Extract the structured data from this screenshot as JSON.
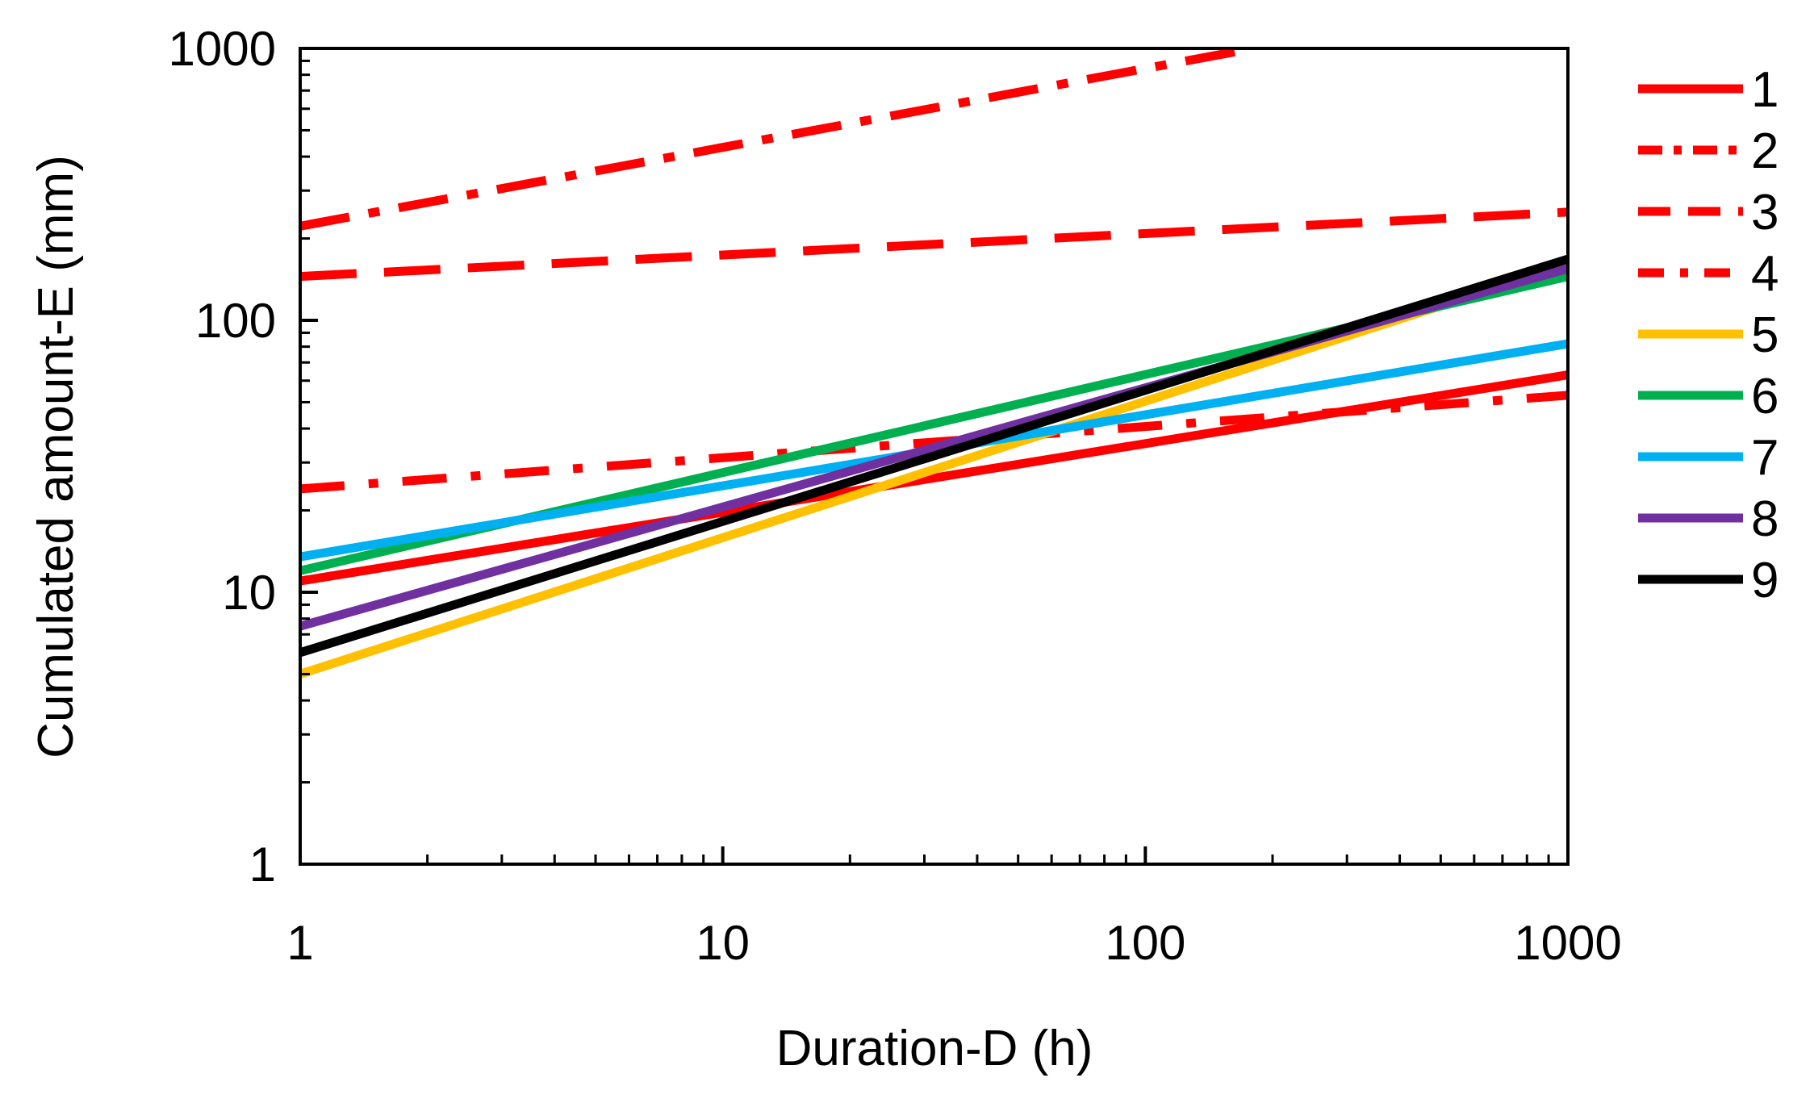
{
  "chart_data": {
    "type": "line",
    "x_scale": "log",
    "y_scale": "log",
    "xlabel": "Duration-D (h)",
    "ylabel": "Cumulated amount-E (mm)",
    "xlim": [
      1,
      1000
    ],
    "ylim": [
      1,
      1000
    ],
    "x_ticks": [
      1,
      10,
      100,
      1000
    ],
    "x_tick_labels": [
      "1",
      "10",
      "100",
      "1000"
    ],
    "y_ticks": [
      1,
      10,
      100,
      1000
    ],
    "y_tick_labels": [
      "1",
      "10",
      "100",
      "1000"
    ],
    "grid": false,
    "legend_position": "right",
    "series": [
      {
        "name": "1",
        "color": "#ff0000",
        "dash": "solid",
        "points": [
          [
            1,
            11
          ],
          [
            1000,
            63
          ]
        ]
      },
      {
        "name": "2",
        "color": "#ff0000",
        "dash": "dashdot2",
        "points": [
          [
            1,
            222
          ],
          [
            180,
            1000
          ]
        ]
      },
      {
        "name": "3",
        "color": "#ff0000",
        "dash": "longdash",
        "points": [
          [
            1,
            145
          ],
          [
            1000,
            250
          ]
        ]
      },
      {
        "name": "4",
        "color": "#ff0000",
        "dash": "dashdot",
        "points": [
          [
            1,
            24
          ],
          [
            1000,
            53
          ]
        ]
      },
      {
        "name": "5",
        "color": "#ffc000",
        "dash": "solid",
        "points": [
          [
            1,
            5
          ],
          [
            1000,
            160
          ]
        ]
      },
      {
        "name": "6",
        "color": "#00b050",
        "dash": "solid",
        "points": [
          [
            1,
            12
          ],
          [
            1000,
            145
          ]
        ]
      },
      {
        "name": "7",
        "color": "#00b0f0",
        "dash": "solid",
        "points": [
          [
            1,
            13.5
          ],
          [
            1000,
            82
          ]
        ]
      },
      {
        "name": "8",
        "color": "#7030a0",
        "dash": "solid",
        "points": [
          [
            1,
            7.5
          ],
          [
            1000,
            155
          ]
        ]
      },
      {
        "name": "9",
        "color": "#000000",
        "dash": "solid",
        "points": [
          [
            1,
            6
          ],
          [
            1000,
            168
          ]
        ]
      }
    ]
  }
}
